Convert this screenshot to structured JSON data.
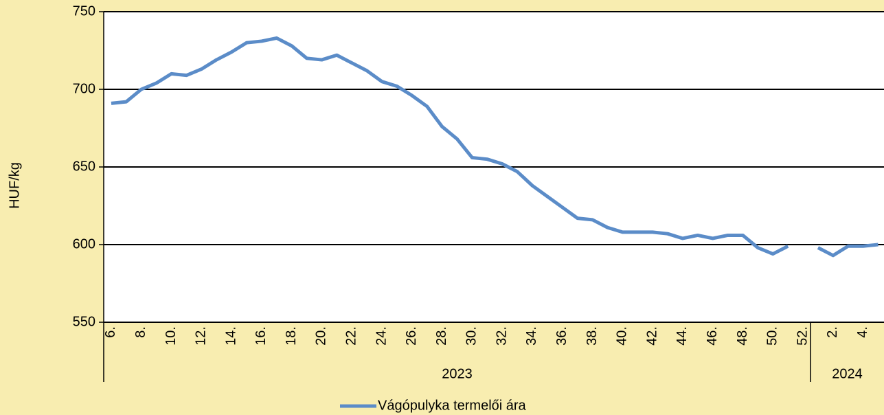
{
  "chart_data": {
    "type": "line",
    "y_label": "HUF/kg",
    "categories": [
      "6.",
      null,
      "8.",
      null,
      "10.",
      null,
      "12.",
      null,
      "14.",
      null,
      "16.",
      null,
      "18.",
      null,
      "20.",
      null,
      "22.",
      null,
      "24.",
      null,
      "26.",
      null,
      "28.",
      null,
      "30.",
      null,
      "32.",
      null,
      "34.",
      null,
      "36.",
      null,
      "38.",
      null,
      "40.",
      null,
      "42.",
      null,
      "44.",
      null,
      "46.",
      null,
      "48.",
      null,
      "50.",
      null,
      "52.",
      null,
      "2.",
      null,
      "4.",
      null
    ],
    "groups": [
      {
        "label": "2023",
        "count": 47
      },
      {
        "label": "2024",
        "count": 5
      }
    ],
    "series": [
      {
        "name": "Vágópulyka termelői ára",
        "color": "#5b8cc8",
        "values": [
          691,
          692,
          700,
          704,
          710,
          709,
          713,
          719,
          724,
          730,
          731,
          733,
          728,
          720,
          719,
          722,
          717,
          712,
          705,
          702,
          696,
          689,
          676,
          668,
          656,
          655,
          652,
          647,
          638,
          631,
          624,
          617,
          616,
          611,
          608,
          608,
          608,
          607,
          604,
          606,
          604,
          606,
          606,
          598,
          594,
          599,
          null,
          598,
          593,
          599,
          599,
          600
        ]
      }
    ],
    "ylim": [
      550,
      750
    ],
    "yticks": [
      550,
      600,
      650,
      700,
      750
    ],
    "grid": true,
    "legend": "bottom"
  }
}
